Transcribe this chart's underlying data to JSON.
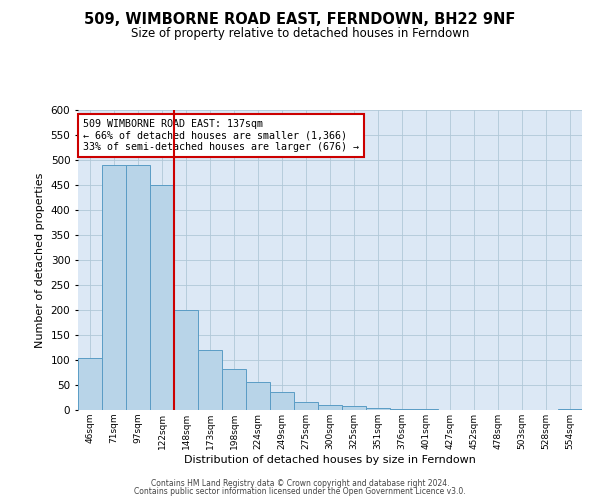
{
  "title": "509, WIMBORNE ROAD EAST, FERNDOWN, BH22 9NF",
  "subtitle": "Size of property relative to detached houses in Ferndown",
  "xlabel": "Distribution of detached houses by size in Ferndown",
  "ylabel": "Number of detached properties",
  "footer_lines": [
    "Contains HM Land Registry data © Crown copyright and database right 2024.",
    "Contains public sector information licensed under the Open Government Licence v3.0."
  ],
  "bar_labels": [
    "46sqm",
    "71sqm",
    "97sqm",
    "122sqm",
    "148sqm",
    "173sqm",
    "198sqm",
    "224sqm",
    "249sqm",
    "275sqm",
    "300sqm",
    "325sqm",
    "351sqm",
    "376sqm",
    "401sqm",
    "427sqm",
    "452sqm",
    "478sqm",
    "503sqm",
    "528sqm",
    "554sqm"
  ],
  "bar_values": [
    105,
    490,
    490,
    450,
    200,
    120,
    83,
    56,
    36,
    16,
    10,
    8,
    4,
    2,
    2,
    1,
    0,
    0,
    0,
    0,
    2
  ],
  "bar_color": "#b8d4e8",
  "bar_edge_color": "#5a9cc5",
  "vline_x": 3.5,
  "vline_color": "#cc0000",
  "annotation_text": "509 WIMBORNE ROAD EAST: 137sqm\n← 66% of detached houses are smaller (1,366)\n33% of semi-detached houses are larger (676) →",
  "annotation_box_color": "#ffffff",
  "annotation_box_edge_color": "#cc0000",
  "ylim": [
    0,
    600
  ],
  "yticks": [
    0,
    50,
    100,
    150,
    200,
    250,
    300,
    350,
    400,
    450,
    500,
    550,
    600
  ],
  "background_color": "#ffffff",
  "plot_bg_color": "#dce8f5",
  "grid_color": "#b0c8d8"
}
